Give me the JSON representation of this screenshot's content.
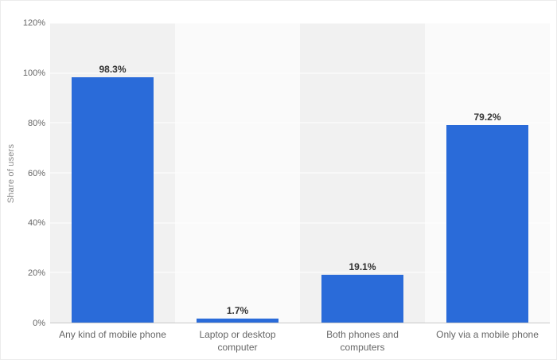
{
  "chart_data": {
    "type": "bar",
    "categories": [
      "Any kind of mobile phone",
      "Laptop or desktop computer",
      "Both phones and computers",
      "Only via a mobile phone"
    ],
    "values": [
      98.3,
      1.7,
      19.1,
      79.2
    ],
    "value_labels": [
      "98.3%",
      "1.7%",
      "19.1%",
      "79.2%"
    ],
    "title": "",
    "xlabel": "",
    "ylabel": "Share of users",
    "ylim": [
      0,
      120
    ],
    "yticks": [
      0,
      20,
      40,
      60,
      80,
      100,
      120
    ],
    "ytick_labels": [
      "0%",
      "20%",
      "40%",
      "60%",
      "80%",
      "100%",
      "120%"
    ],
    "grid": true,
    "legend": false,
    "colors": {
      "bar": "#2a6bd9",
      "band_even": "#f1f1f1",
      "band_odd": "#fafafa",
      "gridline": "#ffffff",
      "axis_line": "#c9c9c9",
      "tick_text": "#666666",
      "value_text": "#333333",
      "axis_title_text": "#8a8a8a"
    }
  }
}
